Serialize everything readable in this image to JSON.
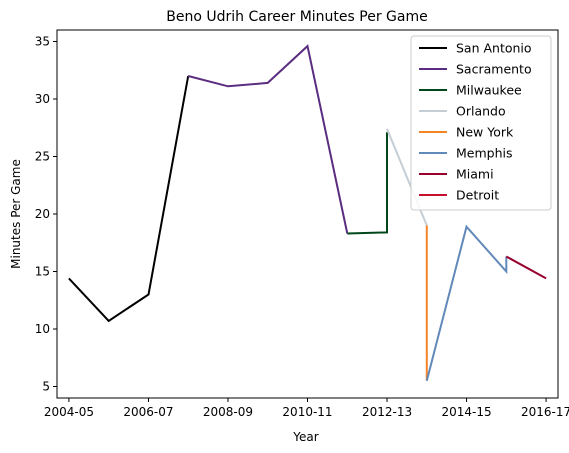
{
  "chart_data": {
    "type": "line",
    "title": "Beno Udrih Career Minutes Per Game",
    "xlabel": "Year",
    "ylabel": "Minutes Per Game",
    "x_tick_labels": [
      "2004-05",
      "2006-07",
      "2008-09",
      "2010-11",
      "2012-13",
      "2014-15",
      "2016-17"
    ],
    "y_ticks": [
      5,
      10,
      15,
      20,
      25,
      30,
      35
    ],
    "xlim": [
      2003.7,
      2016.3
    ],
    "ylim": [
      4.0,
      36.0
    ],
    "grid": false,
    "legend_position": "upper right",
    "series": [
      {
        "name": "San Antonio",
        "color": "#000000",
        "points": [
          [
            2004,
            14.4
          ],
          [
            2005,
            10.7
          ],
          [
            2006,
            13.0
          ],
          [
            2007,
            32.0
          ]
        ]
      },
      {
        "name": "Sacramento",
        "color": "#5a2d81",
        "points": [
          [
            2007,
            32.0
          ],
          [
            2008,
            31.1
          ],
          [
            2009,
            31.4
          ],
          [
            2010,
            34.6
          ],
          [
            2011,
            18.3
          ]
        ]
      },
      {
        "name": "Milwaukee",
        "color": "#00471b",
        "points": [
          [
            2011,
            18.3
          ],
          [
            2012,
            18.4
          ],
          [
            2012,
            27.1
          ]
        ]
      },
      {
        "name": "Orlando",
        "color": "#c4ced4",
        "points": [
          [
            2012,
            27.4
          ],
          [
            2013,
            19.0
          ]
        ]
      },
      {
        "name": "New York",
        "color": "#f58426",
        "points": [
          [
            2013,
            19.0
          ],
          [
            2013,
            5.5
          ]
        ]
      },
      {
        "name": "Memphis",
        "color": "#6189b9",
        "points": [
          [
            2013,
            5.5
          ],
          [
            2014,
            18.9
          ],
          [
            2015,
            15.0
          ],
          [
            2015,
            16.3
          ]
        ]
      },
      {
        "name": "Miami",
        "color": "#98002e",
        "points": [
          [
            2015,
            16.3
          ],
          [
            2016,
            14.4
          ]
        ]
      },
      {
        "name": "Detroit",
        "color": "#c8102e",
        "points": []
      }
    ]
  }
}
